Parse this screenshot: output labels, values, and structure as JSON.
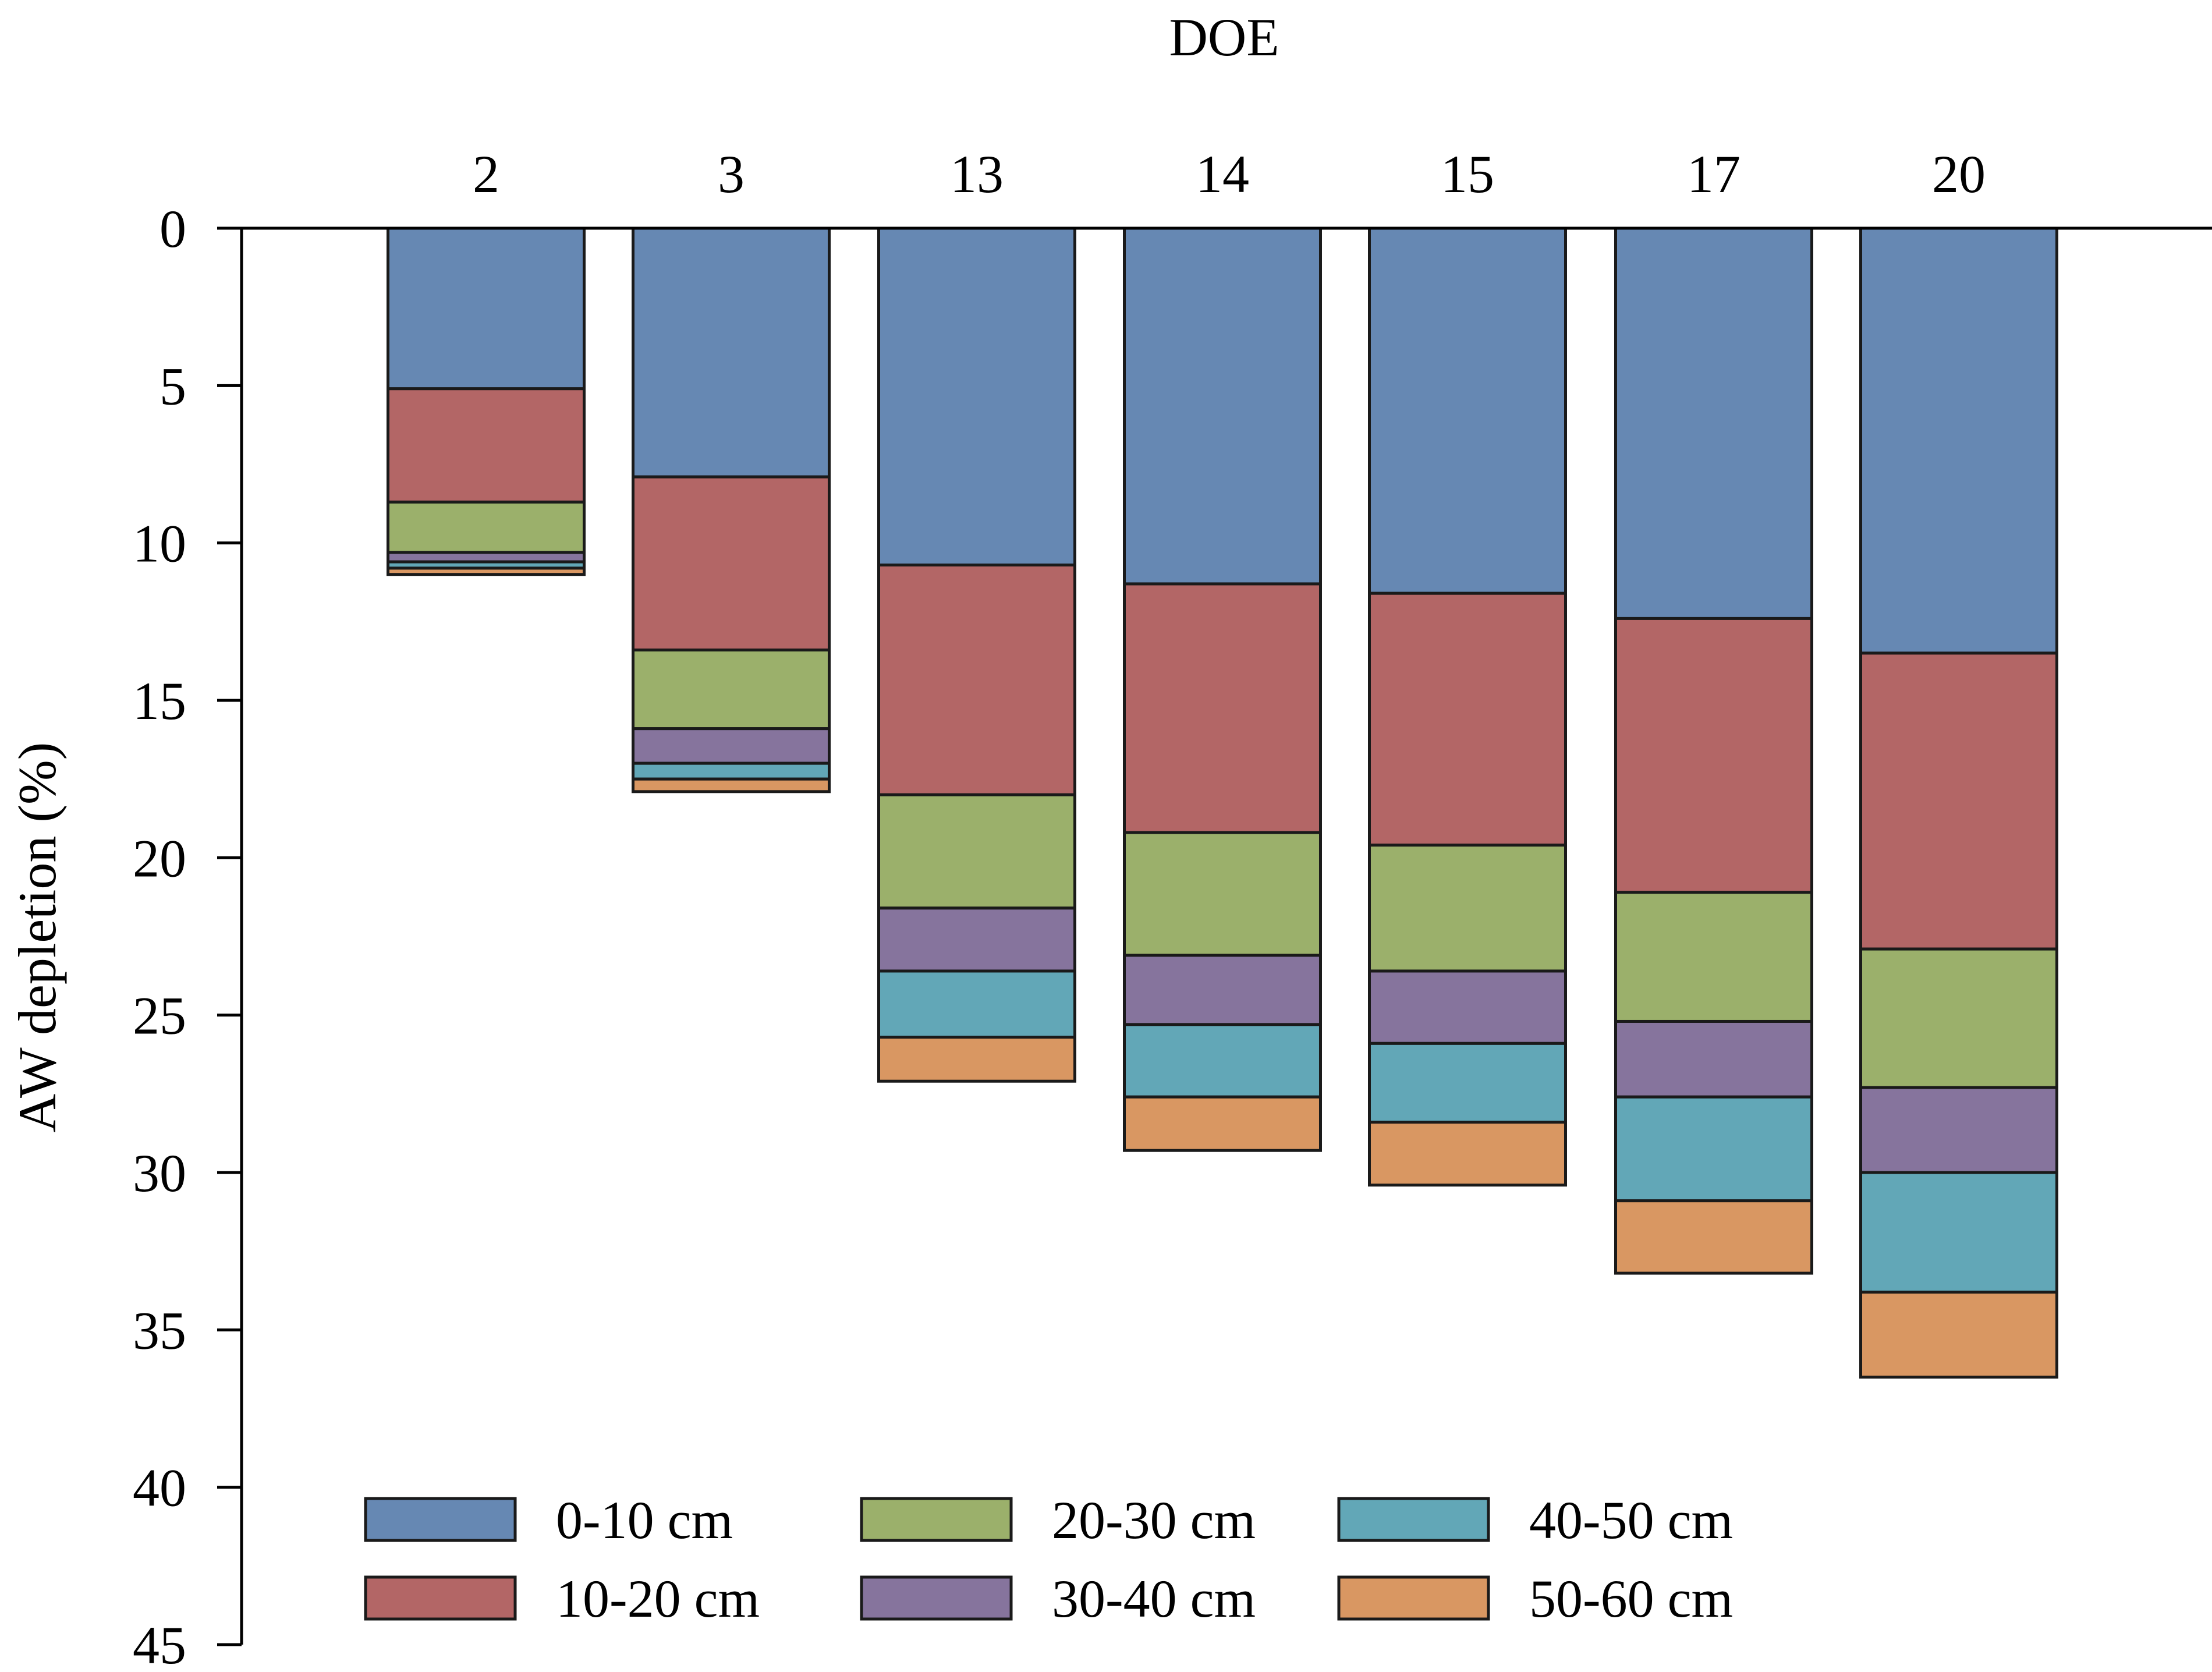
{
  "chart_data": {
    "type": "bar",
    "stacked": true,
    "orientation": "inverted-y",
    "title": "",
    "xlabel": "DOE",
    "ylabel": "AW depletion (%)",
    "categories": [
      "2",
      "3",
      "13",
      "14",
      "15",
      "17",
      "20"
    ],
    "ylim": [
      0,
      45
    ],
    "yticks": [
      0,
      5,
      10,
      15,
      20,
      25,
      30,
      35,
      40,
      45
    ],
    "series": [
      {
        "name": "0-10 cm",
        "color": "#6688B3",
        "values": [
          5.1,
          7.9,
          10.7,
          11.3,
          11.6,
          12.4,
          13.5
        ]
      },
      {
        "name": "10-20 cm",
        "color": "#B36666",
        "values": [
          3.6,
          5.5,
          7.3,
          7.9,
          8.0,
          8.7,
          9.4
        ]
      },
      {
        "name": "20-30 cm",
        "color": "#9BB06B",
        "values": [
          1.6,
          2.5,
          3.6,
          3.9,
          4.0,
          4.1,
          4.4
        ]
      },
      {
        "name": "30-40 cm",
        "color": "#86749D",
        "values": [
          0.3,
          1.1,
          2.0,
          2.2,
          2.3,
          2.4,
          2.7
        ]
      },
      {
        "name": "40-50 cm",
        "color": "#62A7B7",
        "values": [
          0.2,
          0.5,
          2.1,
          2.3,
          2.5,
          3.3,
          3.8
        ]
      },
      {
        "name": "50-60 cm",
        "color": "#D99762",
        "values": [
          0.2,
          0.4,
          1.4,
          1.7,
          2.0,
          2.3,
          2.7
        ]
      }
    ],
    "legend_position": "bottom",
    "grid": false
  }
}
